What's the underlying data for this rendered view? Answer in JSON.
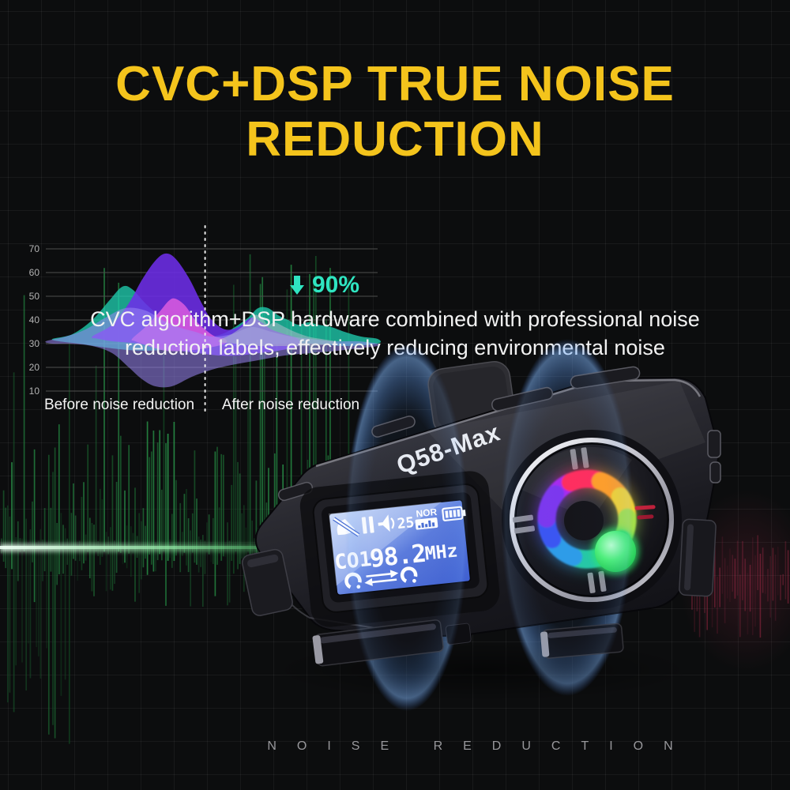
{
  "page": {
    "background": "#0c0d0e",
    "accent_yellow": "#f4c41c",
    "accent_teal": "#2fe5c1"
  },
  "header": {
    "title_line1": "CVC+DSP TRUE NOISE",
    "title_line2": "REDUCTION",
    "subtitle_line1": "CVC algorithm+DSP hardware combined with professional noise",
    "subtitle_line2": "reduction labels, effectively reducing environmental noise"
  },
  "chart_data": {
    "type": "area",
    "title": "Noise level before vs after reduction",
    "xlabel": "",
    "ylabel": "",
    "yticks": [
      70,
      60,
      50,
      40,
      30,
      20,
      10
    ],
    "ylim": [
      10,
      70
    ],
    "baseline_value": 30,
    "grid": true,
    "legend": "none",
    "divider_x_pct": 48,
    "divider_style": "dotted-white",
    "annotation": {
      "text": "90%",
      "symbol": "down-arrow-icon",
      "color": "#2fe5c1",
      "x_pct": 76,
      "value": 61
    },
    "zone_labels": [
      {
        "label": "Before noise reduction"
      },
      {
        "label": "After noise reduction"
      }
    ],
    "series": [
      {
        "name": "ambient-teal",
        "color": "#1fd3b4",
        "opacity": 0.75,
        "points": [
          [
            2,
            32
          ],
          [
            8,
            34
          ],
          [
            14,
            40
          ],
          [
            19,
            48
          ],
          [
            23,
            54
          ],
          [
            26,
            53
          ],
          [
            30,
            47
          ],
          [
            34,
            42
          ],
          [
            38,
            38
          ],
          [
            43,
            35
          ],
          [
            48,
            33
          ],
          [
            53,
            34
          ],
          [
            57,
            37
          ],
          [
            61,
            41
          ],
          [
            64,
            45
          ],
          [
            67,
            45
          ],
          [
            70,
            42
          ],
          [
            73,
            40
          ],
          [
            76,
            38
          ],
          [
            79,
            39
          ],
          [
            82,
            38
          ],
          [
            86,
            37
          ],
          [
            90,
            35
          ],
          [
            95,
            33
          ],
          [
            100,
            32
          ],
          [
            100,
            30
          ],
          [
            90,
            29
          ],
          [
            80,
            30
          ],
          [
            70,
            30
          ],
          [
            60,
            29
          ],
          [
            50,
            29
          ],
          [
            40,
            28
          ],
          [
            30,
            27
          ],
          [
            20,
            28
          ],
          [
            10,
            30
          ],
          [
            4,
            31
          ]
        ]
      },
      {
        "name": "loud-purple",
        "color": "#6d2ee8",
        "opacity": 0.88,
        "points": [
          [
            14,
            33
          ],
          [
            20,
            38
          ],
          [
            25,
            47
          ],
          [
            29,
            57
          ],
          [
            33,
            65
          ],
          [
            36,
            68
          ],
          [
            39,
            66
          ],
          [
            43,
            58
          ],
          [
            47,
            47
          ],
          [
            50,
            40
          ],
          [
            54,
            36
          ],
          [
            58,
            37
          ],
          [
            62,
            41
          ],
          [
            65,
            39
          ],
          [
            68,
            36
          ],
          [
            72,
            34
          ],
          [
            76,
            32
          ],
          [
            76,
            29
          ],
          [
            70,
            27
          ],
          [
            64,
            26
          ],
          [
            58,
            25
          ],
          [
            52,
            25
          ],
          [
            46,
            26
          ],
          [
            40,
            27
          ],
          [
            34,
            28
          ],
          [
            28,
            30
          ],
          [
            20,
            31
          ],
          [
            16,
            32
          ]
        ]
      },
      {
        "name": "mid-pink",
        "color": "#e35fe0",
        "opacity": 0.8,
        "points": [
          [
            26,
            32
          ],
          [
            30,
            37
          ],
          [
            34,
            43
          ],
          [
            37,
            48
          ],
          [
            39,
            49
          ],
          [
            42,
            46
          ],
          [
            45,
            40
          ],
          [
            48,
            36
          ],
          [
            51,
            33
          ],
          [
            54,
            32
          ],
          [
            54,
            30
          ],
          [
            48,
            28
          ],
          [
            42,
            27
          ],
          [
            36,
            27
          ],
          [
            31,
            29
          ],
          [
            27,
            31
          ]
        ]
      },
      {
        "name": "soft-violet",
        "color": "#9a86f5",
        "opacity": 0.55,
        "points": [
          [
            0,
            31
          ],
          [
            6,
            33
          ],
          [
            12,
            36
          ],
          [
            18,
            41
          ],
          [
            24,
            45
          ],
          [
            30,
            44
          ],
          [
            35,
            40
          ],
          [
            40,
            37
          ],
          [
            45,
            35
          ],
          [
            50,
            33
          ],
          [
            56,
            34
          ],
          [
            62,
            37
          ],
          [
            68,
            35
          ],
          [
            74,
            33
          ],
          [
            80,
            32
          ],
          [
            87,
            31
          ],
          [
            94,
            31
          ],
          [
            100,
            30
          ],
          [
            100,
            29
          ],
          [
            94,
            28
          ],
          [
            88,
            27
          ],
          [
            80,
            26
          ],
          [
            72,
            25
          ],
          [
            64,
            23
          ],
          [
            56,
            21
          ],
          [
            50,
            19
          ],
          [
            44,
            16
          ],
          [
            38,
            12
          ],
          [
            33,
            12
          ],
          [
            29,
            15
          ],
          [
            25,
            20
          ],
          [
            20,
            26
          ],
          [
            14,
            29
          ],
          [
            7,
            30
          ],
          [
            2,
            30
          ]
        ]
      },
      {
        "name": "after-gray",
        "color": "#aebdca",
        "opacity": 0.55,
        "points": [
          [
            52,
            31
          ],
          [
            56,
            34
          ],
          [
            60,
            38
          ],
          [
            63,
            42
          ],
          [
            65,
            41
          ],
          [
            67,
            38
          ],
          [
            69,
            39
          ],
          [
            72,
            37
          ],
          [
            75,
            35
          ],
          [
            79,
            33
          ],
          [
            83,
            32
          ],
          [
            87,
            31
          ],
          [
            87,
            30
          ],
          [
            80,
            29
          ],
          [
            72,
            29
          ],
          [
            64,
            29
          ],
          [
            57,
            30
          ]
        ]
      }
    ]
  },
  "device": {
    "model": "Q58-Max",
    "lcd": {
      "status_icons": [
        "muted-mic-icon",
        "pause-icon",
        "speaker-icon",
        "signal-meter-icon",
        "battery-full-icon"
      ],
      "volume": "25",
      "mode": "NOR",
      "channel": "CO1",
      "frequency": "98.2",
      "freq_unit": "MHz",
      "bottom_icon": "intercom-swap-arrows-icon"
    },
    "logo_ring_colors": [
      {
        "a1": -58,
        "a2": -20,
        "c": "#a82cf0"
      },
      {
        "a1": -24,
        "a2": 26,
        "c": "#ff2d5e"
      },
      {
        "a1": 20,
        "a2": 62,
        "c": "#ff9e2a"
      },
      {
        "a1": 56,
        "a2": 94,
        "c": "#f2d234"
      },
      {
        "a1": 88,
        "a2": 126,
        "c": "#a4e04a"
      },
      {
        "a1": 120,
        "a2": 165,
        "c": "#3bd668"
      },
      {
        "a1": 158,
        "a2": 206,
        "c": "#28c8a6"
      },
      {
        "a1": 200,
        "a2": 246,
        "c": "#2f9ce8"
      },
      {
        "a1": 240,
        "a2": 277,
        "c": "#3b57f2"
      },
      {
        "a1": 271,
        "a2": 308,
        "c": "#7c39ee"
      }
    ]
  },
  "background": {
    "spectrum": {
      "seed": 1337,
      "green": "#2fae52",
      "core_line": "#d6ffe2",
      "red": "#d8325a"
    }
  },
  "footer": {
    "caption": "NOISE REDUCTION"
  }
}
